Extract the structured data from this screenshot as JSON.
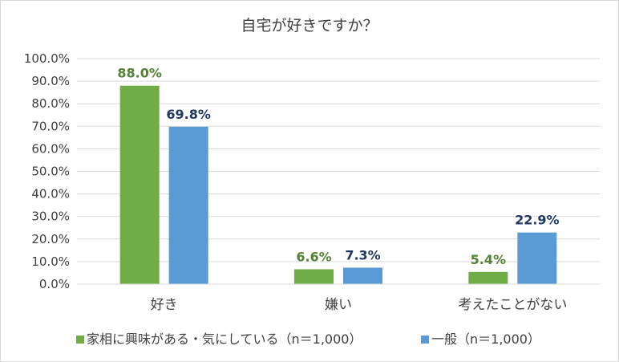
{
  "chart_data": {
    "type": "bar",
    "title": "自宅が好きですか？",
    "categories": [
      "好き",
      "嫌い",
      "考えたことがない"
    ],
    "series": [
      {
        "name": "家相に興味がある・気にしている（n＝1,000）",
        "values": [
          88.0,
          6.6,
          5.4
        ],
        "labels": [
          "88.0%",
          "6.6%",
          "5.4%"
        ],
        "color": "#70ad47",
        "label_color": "#548235"
      },
      {
        "name": "一般（n＝1,000）",
        "values": [
          69.8,
          7.3,
          22.9
        ],
        "labels": [
          "69.8%",
          "7.3%",
          "22.9%"
        ],
        "color": "#5b9bd5",
        "label_color": "#203864"
      }
    ],
    "yticks": [
      "0.0%",
      "10.0%",
      "20.0%",
      "30.0%",
      "40.0%",
      "50.0%",
      "60.0%",
      "70.0%",
      "80.0%",
      "90.0%",
      "100.0%"
    ],
    "ylim": [
      0,
      100
    ],
    "grid": true,
    "legend_position": "bottom"
  }
}
